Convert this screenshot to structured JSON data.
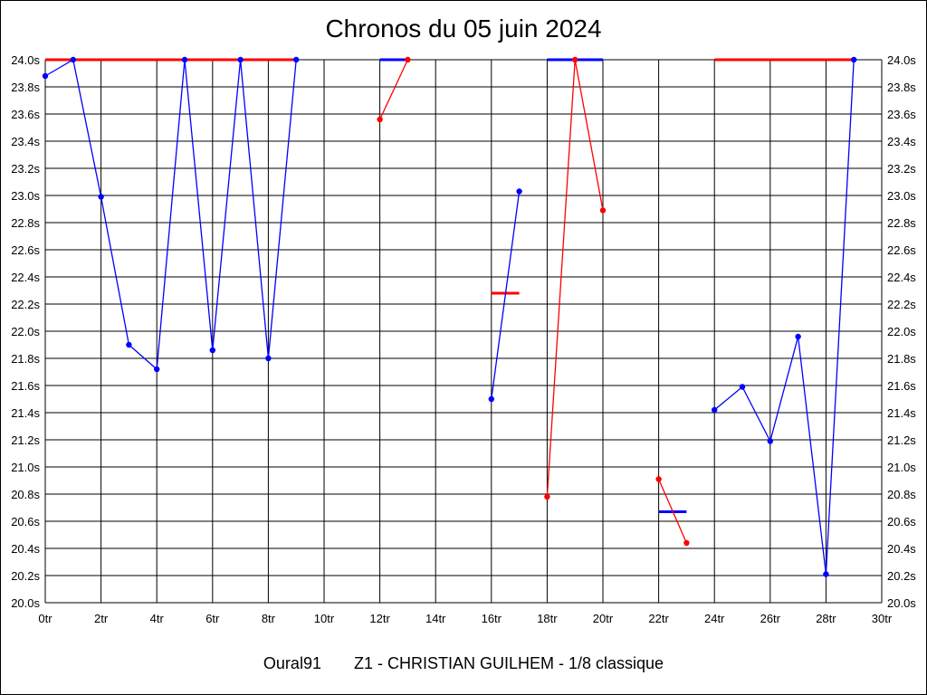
{
  "chart_data": {
    "type": "line",
    "title": "Chronos du 05 juin 2024",
    "footer": {
      "left": "Oural91",
      "right": "Z1 - CHRISTIAN GUILHEM - 1/8 classique"
    },
    "x_tick_labels": [
      "0tr",
      "2tr",
      "4tr",
      "6tr",
      "8tr",
      "10tr",
      "12tr",
      "14tr",
      "16tr",
      "18tr",
      "20tr",
      "22tr",
      "24tr",
      "26tr",
      "28tr",
      "30tr"
    ],
    "y_tick_labels": [
      "20.0s",
      "20.2s",
      "20.4s",
      "20.6s",
      "20.8s",
      "21.0s",
      "21.2s",
      "21.4s",
      "21.6s",
      "21.8s",
      "22.0s",
      "22.2s",
      "22.4s",
      "22.6s",
      "22.8s",
      "23.0s",
      "23.2s",
      "23.4s",
      "23.6s",
      "23.8s",
      "24.0s"
    ],
    "xlim": [
      0,
      30
    ],
    "ylim": [
      20.0,
      24.0
    ],
    "grid": true,
    "colors": {
      "blue": "#0000ff",
      "red": "#ff0000",
      "grid": "#000000"
    },
    "series": [
      {
        "color": "blue",
        "points": [
          [
            0,
            23.88
          ],
          [
            1,
            24.0
          ],
          [
            2,
            22.99
          ],
          [
            3,
            21.9
          ],
          [
            4,
            21.72
          ],
          [
            5,
            24.0
          ],
          [
            6,
            21.86
          ],
          [
            7,
            24.0
          ],
          [
            8,
            21.8
          ],
          [
            9,
            24.0
          ]
        ]
      },
      {
        "color": "red",
        "points": [
          [
            12,
            23.56
          ],
          [
            13,
            24.0
          ]
        ]
      },
      {
        "color": "blue",
        "points": [
          [
            16,
            21.5
          ],
          [
            17,
            23.03
          ]
        ]
      },
      {
        "color": "red",
        "points": [
          [
            18,
            20.78
          ],
          [
            19,
            24.0
          ],
          [
            20,
            22.89
          ]
        ]
      },
      {
        "color": "red",
        "points": [
          [
            22,
            20.91
          ],
          [
            23,
            20.44
          ]
        ]
      },
      {
        "color": "blue",
        "points": [
          [
            24,
            21.42
          ],
          [
            25,
            21.59
          ],
          [
            26,
            21.19
          ],
          [
            27,
            21.96
          ],
          [
            28,
            20.21
          ],
          [
            29,
            24.0
          ]
        ]
      }
    ],
    "reference_lines": [
      {
        "color": "red",
        "x": [
          0,
          9
        ],
        "y": 24.0
      },
      {
        "color": "blue",
        "x": [
          12,
          13
        ],
        "y": 24.0
      },
      {
        "color": "red",
        "x": [
          16,
          17
        ],
        "y": 22.28
      },
      {
        "color": "blue",
        "x": [
          18,
          20
        ],
        "y": 24.0
      },
      {
        "color": "blue",
        "x": [
          22,
          23
        ],
        "y": 20.67
      },
      {
        "color": "red",
        "x": [
          24,
          29
        ],
        "y": 24.0
      }
    ]
  }
}
